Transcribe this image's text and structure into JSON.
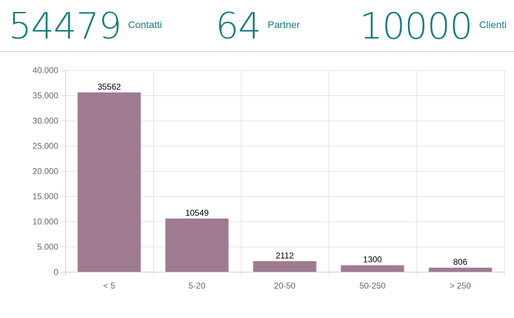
{
  "kpis": {
    "contacts": {
      "value": "54479",
      "label": "Contatti"
    },
    "partners": {
      "value": "64",
      "label": "Partner"
    },
    "clients": {
      "value": "10000",
      "label": "Clienti"
    }
  },
  "colors": {
    "kpi_text": "#0f7c80",
    "bar_fill": "#9e7b91",
    "grid": "#e5e5e5"
  },
  "chart_data": {
    "type": "bar",
    "categories": [
      "< 5",
      "5-20",
      "20-50",
      "50-250",
      "> 250"
    ],
    "values": [
      35562,
      10549,
      2112,
      1300,
      806
    ],
    "data_labels": [
      "35562",
      "10549",
      "2112",
      "1300",
      "806"
    ],
    "ylim": [
      0,
      40000
    ],
    "y_ticks": [
      0,
      5000,
      10000,
      15000,
      20000,
      25000,
      30000,
      35000,
      40000
    ],
    "y_tick_labels": [
      "0",
      "5.000",
      "10.000",
      "15.000",
      "20.000",
      "25.000",
      "30.000",
      "35.000",
      "40.000"
    ],
    "grid": true,
    "legend": "none",
    "title": "",
    "xlabel": "",
    "ylabel": ""
  }
}
